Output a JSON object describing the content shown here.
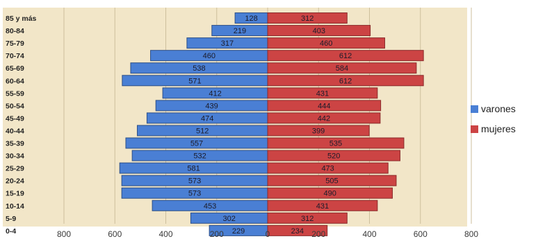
{
  "chart_data": {
    "type": "bar",
    "orientation": "horizontal-population-pyramid",
    "categories": [
      "85 y más",
      "80-84",
      "75-79",
      "70-74",
      "65-69",
      "60-64",
      "55-59",
      "50-54",
      "45-49",
      "40-44",
      "35-39",
      "30-34",
      "25-29",
      "20-24",
      "15-19",
      "10-14",
      "5-9",
      "0-4"
    ],
    "series": [
      {
        "name": "varones",
        "color": "#4a7fd4",
        "values": [
          128,
          219,
          317,
          460,
          538,
          571,
          412,
          439,
          474,
          512,
          557,
          532,
          581,
          573,
          573,
          453,
          302,
          229
        ]
      },
      {
        "name": "mujeres",
        "color": "#cc4444",
        "values": [
          312,
          403,
          460,
          612,
          584,
          612,
          431,
          444,
          442,
          399,
          535,
          520,
          473,
          505,
          490,
          431,
          312,
          234
        ]
      }
    ],
    "x_tick_labels": [
      "800",
      "600",
      "400",
      "200",
      "0",
      "200",
      "400",
      "600",
      "800"
    ],
    "xlim": [
      -800,
      800
    ],
    "grid": true,
    "legend_position": "right",
    "background_color": "#f2e6c8"
  }
}
